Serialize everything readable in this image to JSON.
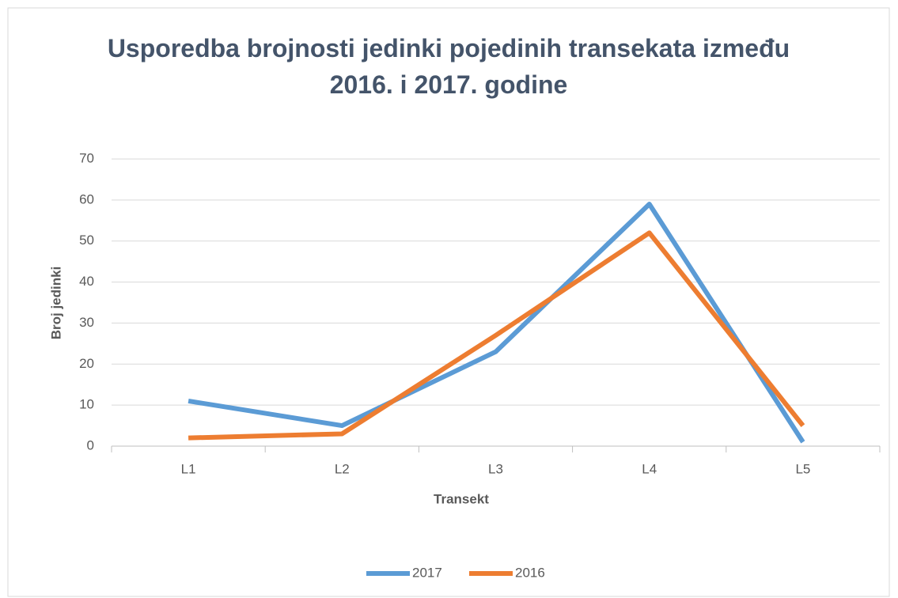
{
  "chart_data": {
    "type": "line",
    "title": "Usporedba brojnosti jedinki pojedinih transekata između 2016. i 2017. godine",
    "x_label": "Transekt",
    "y_label": "Broj jedinki",
    "categories": [
      "L1",
      "L2",
      "L3",
      "L4",
      "L5"
    ],
    "series": [
      {
        "name": "2017",
        "color": "#5b9bd5",
        "values": [
          11,
          5,
          23,
          59,
          1
        ]
      },
      {
        "name": "2016",
        "color": "#ed7d31",
        "values": [
          2,
          3,
          27,
          52,
          5
        ]
      }
    ],
    "ylim": [
      0,
      70
    ],
    "yticks": [
      0,
      10,
      20,
      30,
      40,
      50,
      60,
      70
    ],
    "grid": true,
    "legend": "bottom"
  }
}
